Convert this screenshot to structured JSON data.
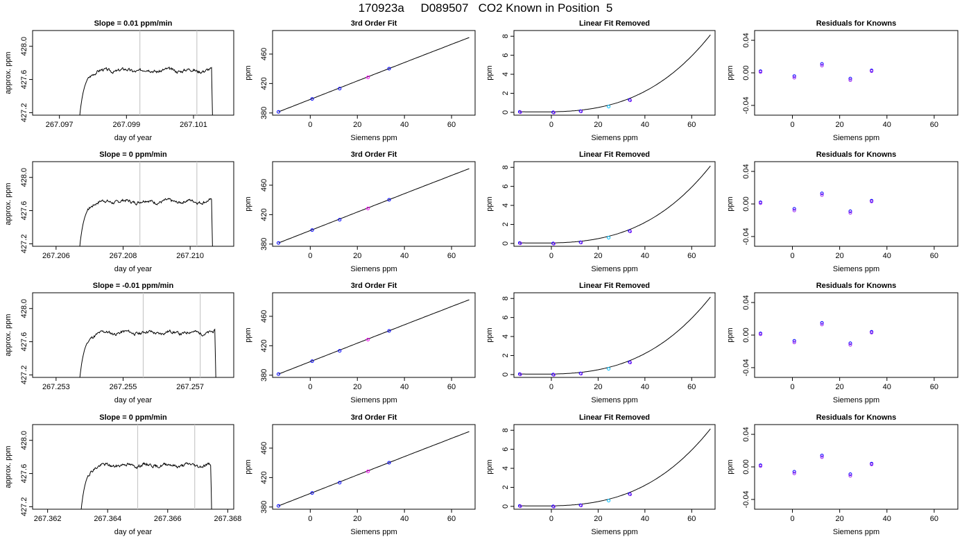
{
  "page": {
    "title": "170923a     D089507   CO2 Known in Position  5"
  },
  "colors": {
    "frame": "#000000",
    "curve": "#000000",
    "marker_lines": "#c8c8c8",
    "points_primary": "#0000ff",
    "points_secondary": "#a020f0",
    "point_cyan": "#00bfff",
    "point_violet": "#ff00ff"
  },
  "chart_data": [
    {
      "type": "line",
      "panel": "timeseries",
      "row": 0,
      "title": "Slope =  0.01  ppm/min",
      "xlabel": "day of year",
      "ylabel": "approx. ppm",
      "xlim": [
        267.0962,
        267.1022
      ],
      "ylim": [
        427.17,
        428.19
      ],
      "xticks": [
        267.097,
        267.099,
        267.101
      ],
      "yticks": [
        427.2,
        427.6,
        428.0
      ],
      "vlines": [
        267.0994,
        267.1011
      ],
      "t_start": 267.0975,
      "t_end": 267.1016,
      "plateau": 427.71,
      "seed": 3
    },
    {
      "type": "line",
      "panel": "fit",
      "row": 0,
      "title": "3rd Order Fit",
      "xlabel": "Siemens ppm",
      "ylabel": "ppm",
      "xlim": [
        -16,
        70
      ],
      "ylim": [
        377,
        492
      ],
      "xticks": [
        0,
        20,
        40,
        60
      ],
      "yticks": [
        380,
        420,
        460
      ],
      "points": [
        {
          "x": -13.5,
          "y": 381.5
        },
        {
          "x": 0.8,
          "y": 399.0
        },
        {
          "x": 12.5,
          "y": 413.1
        },
        {
          "x": 24.5,
          "y": 428.4
        },
        {
          "x": 33.5,
          "y": 440.2
        }
      ]
    },
    {
      "type": "line",
      "panel": "linear_removed",
      "row": 0,
      "title": "Linear Fit Removed",
      "xlabel": "Siemens ppm",
      "ylabel": "ppm",
      "xlim": [
        -16,
        70
      ],
      "ylim": [
        -0.3,
        8.6
      ],
      "xticks": [
        0,
        20,
        40,
        60
      ],
      "yticks": [
        0,
        2,
        4,
        6,
        8
      ],
      "points": [
        {
          "x": -13.5,
          "y": 0.05
        },
        {
          "x": 0.8,
          "y": 0.0
        },
        {
          "x": 12.5,
          "y": 0.12
        },
        {
          "x": 24.5,
          "y": 0.6
        },
        {
          "x": 33.5,
          "y": 1.3
        }
      ]
    },
    {
      "type": "scatter",
      "panel": "residuals",
      "row": 0,
      "title": "Residuals for Knowns",
      "xlabel": "Siemens ppm",
      "ylabel": "ppm",
      "xlim": [
        -16,
        70
      ],
      "ylim": [
        -0.052,
        0.052
      ],
      "xticks": [
        0,
        20,
        40,
        60
      ],
      "yticks": [
        -0.04,
        0.0,
        0.04
      ],
      "points": [
        {
          "x": -13.5,
          "y": 0.002
        },
        {
          "x": -13.5,
          "y": 0.001
        },
        {
          "x": 0.8,
          "y": -0.004
        },
        {
          "x": 0.8,
          "y": -0.006
        },
        {
          "x": 12.5,
          "y": 0.011
        },
        {
          "x": 12.5,
          "y": 0.009
        },
        {
          "x": 24.5,
          "y": -0.007
        },
        {
          "x": 24.5,
          "y": -0.009
        },
        {
          "x": 33.5,
          "y": 0.003
        },
        {
          "x": 33.5,
          "y": 0.002
        }
      ]
    },
    {
      "type": "line",
      "panel": "timeseries",
      "row": 1,
      "title": "Slope =  0  ppm/min",
      "xlabel": "day of year",
      "ylabel": "approx. ppm",
      "xlim": [
        267.2053,
        267.2113
      ],
      "ylim": [
        427.17,
        428.19
      ],
      "xticks": [
        267.206,
        267.208,
        267.21
      ],
      "yticks": [
        427.2,
        427.6,
        428.0
      ],
      "vlines": [
        267.2085,
        267.2102
      ],
      "t_start": 267.2066,
      "t_end": 267.2107,
      "plateau": 427.71,
      "seed": 7
    },
    {
      "type": "line",
      "panel": "fit",
      "row": 1,
      "title": "3rd Order Fit",
      "xlabel": "Siemens ppm",
      "ylabel": "ppm",
      "xlim": [
        -16,
        70
      ],
      "ylim": [
        377,
        492
      ],
      "xticks": [
        0,
        20,
        40,
        60
      ],
      "yticks": [
        380,
        420,
        460
      ],
      "points": [
        {
          "x": -13.5,
          "y": 381.5
        },
        {
          "x": 0.8,
          "y": 399.0
        },
        {
          "x": 12.5,
          "y": 413.1
        },
        {
          "x": 24.5,
          "y": 428.4
        },
        {
          "x": 33.5,
          "y": 440.2
        }
      ]
    },
    {
      "type": "line",
      "panel": "linear_removed",
      "row": 1,
      "title": "Linear Fit Removed",
      "xlabel": "Siemens ppm",
      "ylabel": "ppm",
      "xlim": [
        -16,
        70
      ],
      "ylim": [
        -0.3,
        8.6
      ],
      "xticks": [
        0,
        20,
        40,
        60
      ],
      "yticks": [
        0,
        2,
        4,
        6,
        8
      ],
      "points": [
        {
          "x": -13.5,
          "y": 0.05
        },
        {
          "x": 0.8,
          "y": 0.0
        },
        {
          "x": 12.5,
          "y": 0.12
        },
        {
          "x": 24.5,
          "y": 0.6
        },
        {
          "x": 33.5,
          "y": 1.3
        }
      ]
    },
    {
      "type": "scatter",
      "panel": "residuals",
      "row": 1,
      "title": "Residuals for Knowns",
      "xlabel": "Siemens ppm",
      "ylabel": "ppm",
      "xlim": [
        -16,
        70
      ],
      "ylim": [
        -0.052,
        0.052
      ],
      "xticks": [
        0,
        20,
        40,
        60
      ],
      "yticks": [
        -0.04,
        0.0,
        0.04
      ],
      "points": [
        {
          "x": -13.5,
          "y": 0.002
        },
        {
          "x": -13.5,
          "y": 0.001
        },
        {
          "x": 0.8,
          "y": -0.006
        },
        {
          "x": 0.8,
          "y": -0.008
        },
        {
          "x": 12.5,
          "y": 0.013
        },
        {
          "x": 12.5,
          "y": 0.011
        },
        {
          "x": 24.5,
          "y": -0.009
        },
        {
          "x": 24.5,
          "y": -0.011
        },
        {
          "x": 33.5,
          "y": 0.004
        },
        {
          "x": 33.5,
          "y": 0.003
        }
      ]
    },
    {
      "type": "line",
      "panel": "timeseries",
      "row": 2,
      "title": "Slope =  -0.01  ppm/min",
      "xlabel": "day of year",
      "ylabel": "approx. ppm",
      "xlim": [
        267.2523,
        267.2583
      ],
      "ylim": [
        427.17,
        428.19
      ],
      "xticks": [
        267.253,
        267.255,
        267.257
      ],
      "yticks": [
        427.2,
        427.6,
        428.0
      ],
      "vlines": [
        267.2556,
        267.2573
      ],
      "t_start": 267.2536,
      "t_end": 267.2578,
      "plateau": 427.71,
      "seed": 11
    },
    {
      "type": "line",
      "panel": "fit",
      "row": 2,
      "title": "3rd Order Fit",
      "xlabel": "Siemens ppm",
      "ylabel": "ppm",
      "xlim": [
        -16,
        70
      ],
      "ylim": [
        377,
        492
      ],
      "xticks": [
        0,
        20,
        40,
        60
      ],
      "yticks": [
        380,
        420,
        460
      ],
      "points": [
        {
          "x": -13.5,
          "y": 381.5
        },
        {
          "x": 0.8,
          "y": 399.0
        },
        {
          "x": 12.5,
          "y": 413.1
        },
        {
          "x": 24.5,
          "y": 428.4
        },
        {
          "x": 33.5,
          "y": 440.2
        }
      ]
    },
    {
      "type": "line",
      "panel": "linear_removed",
      "row": 2,
      "title": "Linear Fit Removed",
      "xlabel": "Siemens ppm",
      "ylabel": "ppm",
      "xlim": [
        -16,
        70
      ],
      "ylim": [
        -0.3,
        8.6
      ],
      "xticks": [
        0,
        20,
        40,
        60
      ],
      "yticks": [
        0,
        2,
        4,
        6,
        8
      ],
      "points": [
        {
          "x": -13.5,
          "y": 0.05
        },
        {
          "x": 0.8,
          "y": 0.0
        },
        {
          "x": 12.5,
          "y": 0.12
        },
        {
          "x": 24.5,
          "y": 0.6
        },
        {
          "x": 33.5,
          "y": 1.3
        }
      ]
    },
    {
      "type": "scatter",
      "panel": "residuals",
      "row": 2,
      "title": "Residuals for Knowns",
      "xlabel": "Siemens ppm",
      "ylabel": "ppm",
      "xlim": [
        -16,
        70
      ],
      "ylim": [
        -0.052,
        0.052
      ],
      "xticks": [
        0,
        20,
        40,
        60
      ],
      "yticks": [
        -0.04,
        0.0,
        0.04
      ],
      "points": [
        {
          "x": -13.5,
          "y": 0.002
        },
        {
          "x": -13.5,
          "y": 0.001
        },
        {
          "x": 0.8,
          "y": -0.007
        },
        {
          "x": 0.8,
          "y": -0.009
        },
        {
          "x": 12.5,
          "y": 0.015
        },
        {
          "x": 12.5,
          "y": 0.013
        },
        {
          "x": 24.5,
          "y": -0.01
        },
        {
          "x": 24.5,
          "y": -0.012
        },
        {
          "x": 33.5,
          "y": 0.004
        },
        {
          "x": 33.5,
          "y": 0.003
        }
      ]
    },
    {
      "type": "line",
      "panel": "timeseries",
      "row": 3,
      "title": "Slope =  0  ppm/min",
      "xlabel": "day of year",
      "ylabel": "approx. ppm",
      "xlim": [
        267.3615,
        267.3682
      ],
      "ylim": [
        427.17,
        428.19
      ],
      "xticks": [
        267.362,
        267.364,
        267.366,
        267.368
      ],
      "yticks": [
        427.2,
        427.6,
        428.0
      ],
      "vlines": [
        267.365,
        267.3669
      ],
      "t_start": 267.363,
      "t_end": 267.3675,
      "plateau": 427.7,
      "seed": 19
    },
    {
      "type": "line",
      "panel": "fit",
      "row": 3,
      "title": "3rd Order Fit",
      "xlabel": "Siemens ppm",
      "ylabel": "ppm",
      "xlim": [
        -16,
        70
      ],
      "ylim": [
        377,
        492
      ],
      "xticks": [
        0,
        20,
        40,
        60
      ],
      "yticks": [
        380,
        420,
        460
      ],
      "points": [
        {
          "x": -13.5,
          "y": 381.5
        },
        {
          "x": 0.8,
          "y": 399.0
        },
        {
          "x": 12.5,
          "y": 413.1
        },
        {
          "x": 24.5,
          "y": 428.4
        },
        {
          "x": 33.5,
          "y": 440.2
        }
      ]
    },
    {
      "type": "line",
      "panel": "linear_removed",
      "row": 3,
      "title": "Linear Fit Removed",
      "xlabel": "Siemens ppm",
      "ylabel": "ppm",
      "xlim": [
        -16,
        70
      ],
      "ylim": [
        -0.3,
        8.6
      ],
      "xticks": [
        0,
        20,
        40,
        60
      ],
      "yticks": [
        0,
        2,
        4,
        6,
        8
      ],
      "points": [
        {
          "x": -13.5,
          "y": 0.05
        },
        {
          "x": 0.8,
          "y": 0.0
        },
        {
          "x": 12.5,
          "y": 0.12
        },
        {
          "x": 24.5,
          "y": 0.6
        },
        {
          "x": 33.5,
          "y": 1.3
        }
      ]
    },
    {
      "type": "scatter",
      "panel": "residuals",
      "row": 3,
      "title": "Residuals for Knowns",
      "xlabel": "Siemens ppm",
      "ylabel": "ppm",
      "xlim": [
        -16,
        70
      ],
      "ylim": [
        -0.052,
        0.052
      ],
      "xticks": [
        0,
        20,
        40,
        60
      ],
      "yticks": [
        -0.04,
        0.0,
        0.04
      ],
      "points": [
        {
          "x": -13.5,
          "y": 0.002
        },
        {
          "x": -13.5,
          "y": 0.001
        },
        {
          "x": 0.8,
          "y": -0.006
        },
        {
          "x": 0.8,
          "y": -0.008
        },
        {
          "x": 12.5,
          "y": 0.014
        },
        {
          "x": 12.5,
          "y": 0.012
        },
        {
          "x": 24.5,
          "y": -0.009
        },
        {
          "x": 24.5,
          "y": -0.011
        },
        {
          "x": 33.5,
          "y": 0.004
        },
        {
          "x": 33.5,
          "y": 0.003
        }
      ]
    }
  ]
}
